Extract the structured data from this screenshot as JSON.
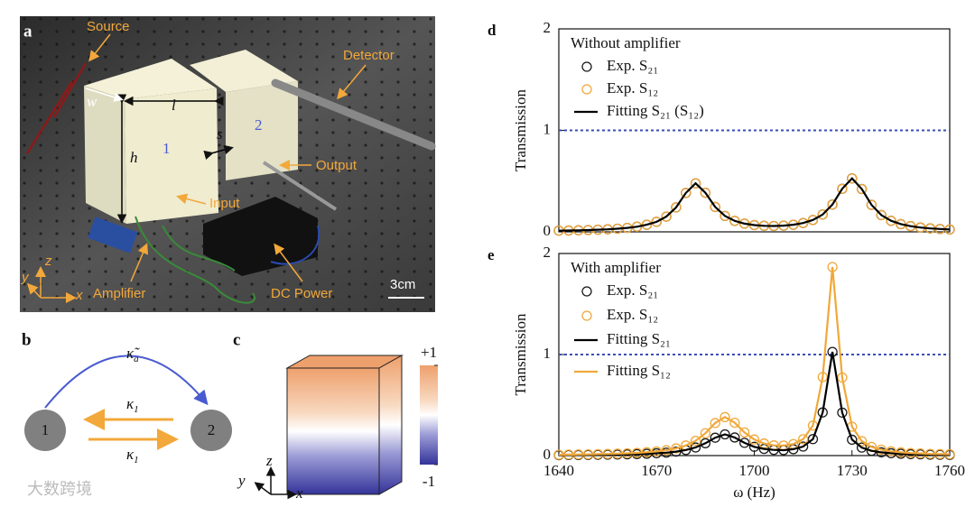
{
  "panel_a": {
    "letter": "a",
    "source": "Source",
    "detector": "Detector",
    "w": "w",
    "l": "l",
    "h": "h",
    "box1": "1",
    "box2": "2",
    "s": "s",
    "output": "Output",
    "input": "Input",
    "amplifier": "Amplifier",
    "dc_power": "DC Power",
    "scale": "3cm",
    "x": "x",
    "y": "y",
    "z": "z"
  },
  "panel_b": {
    "letter": "b",
    "node1": "1",
    "node2": "2",
    "kappa_a": {
      "base": "κ̃",
      "sub": "a"
    },
    "kappa_top": {
      "base": "κ",
      "sub": "1"
    },
    "kappa_bottom": {
      "base": "κ",
      "sub": "1"
    }
  },
  "panel_c": {
    "letter": "c",
    "clim": [
      -1,
      1
    ],
    "colorbar_ticks": [
      {
        "value": 1,
        "label": "+1"
      },
      -1
    ],
    "x": "x",
    "y": "y",
    "z": "z"
  },
  "watermark": "大数跨境",
  "chart_data": [
    {
      "type": "line",
      "panel": "d",
      "ylabel": "Transmission",
      "legend_title": "Without amplifier",
      "xlim": [
        1640,
        1760
      ],
      "ylim": [
        0,
        2
      ],
      "yticks": [
        0,
        1,
        2
      ],
      "reference_line": 1,
      "x": [
        1640,
        1643,
        1646,
        1649,
        1652,
        1655,
        1658,
        1661,
        1664,
        1667,
        1670,
        1673,
        1676,
        1679,
        1682,
        1685,
        1688,
        1691,
        1694,
        1697,
        1700,
        1703,
        1706,
        1709,
        1712,
        1715,
        1718,
        1721,
        1724,
        1727,
        1730,
        1733,
        1736,
        1739,
        1742,
        1745,
        1748,
        1751,
        1754,
        1757,
        1760
      ],
      "series": [
        {
          "name": "Exp. S₂₁",
          "color": "#1a1a1a",
          "marker": "circle",
          "values": [
            0.012,
            0.013,
            0.015,
            0.018,
            0.021,
            0.025,
            0.031,
            0.039,
            0.051,
            0.07,
            0.099,
            0.15,
            0.241,
            0.383,
            0.478,
            0.385,
            0.245,
            0.157,
            0.108,
            0.081,
            0.067,
            0.06,
            0.058,
            0.061,
            0.07,
            0.087,
            0.117,
            0.171,
            0.269,
            0.424,
            0.527,
            0.422,
            0.266,
            0.165,
            0.109,
            0.076,
            0.056,
            0.043,
            0.034,
            0.028,
            0.023
          ]
        },
        {
          "name": "Exp. S₁₂",
          "color": "#f0a83a",
          "marker": "circle",
          "values": [
            0.012,
            0.013,
            0.015,
            0.018,
            0.021,
            0.025,
            0.031,
            0.039,
            0.051,
            0.07,
            0.099,
            0.15,
            0.241,
            0.383,
            0.478,
            0.385,
            0.245,
            0.157,
            0.108,
            0.081,
            0.067,
            0.06,
            0.058,
            0.061,
            0.07,
            0.087,
            0.117,
            0.171,
            0.269,
            0.424,
            0.527,
            0.422,
            0.266,
            0.165,
            0.109,
            0.076,
            0.056,
            0.043,
            0.034,
            0.028,
            0.023
          ]
        },
        {
          "name": "Fitting S₂₁ (S₁₂)",
          "color": "#000000",
          "marker": "line",
          "values": [
            0.012,
            0.013,
            0.015,
            0.018,
            0.021,
            0.025,
            0.031,
            0.039,
            0.051,
            0.07,
            0.099,
            0.15,
            0.241,
            0.383,
            0.478,
            0.385,
            0.245,
            0.157,
            0.108,
            0.081,
            0.067,
            0.06,
            0.058,
            0.061,
            0.07,
            0.087,
            0.117,
            0.171,
            0.269,
            0.424,
            0.527,
            0.422,
            0.266,
            0.165,
            0.109,
            0.076,
            0.056,
            0.043,
            0.034,
            0.028,
            0.023
          ]
        }
      ]
    },
    {
      "type": "line",
      "panel": "e",
      "ylabel": "Transmission",
      "xlabel": "ω (Hz)",
      "legend_title": "With amplifier",
      "xlim": [
        1640,
        1760
      ],
      "xticks": [
        1640,
        1670,
        1700,
        1730,
        1760
      ],
      "ylim": [
        0,
        2
      ],
      "yticks": [
        0,
        1,
        2
      ],
      "reference_line": 1,
      "x": [
        1640,
        1643,
        1646,
        1649,
        1652,
        1655,
        1658,
        1661,
        1664,
        1667,
        1670,
        1673,
        1676,
        1679,
        1682,
        1685,
        1688,
        1691,
        1694,
        1697,
        1700,
        1703,
        1706,
        1709,
        1712,
        1715,
        1718,
        1721,
        1724,
        1727,
        1730,
        1733,
        1736,
        1739,
        1742,
        1745,
        1748,
        1751,
        1754,
        1757,
        1760
      ],
      "series": [
        {
          "name": "Exp. S₂₁",
          "color": "#1a1a1a",
          "marker": "circle",
          "values": [
            0.004,
            0.006,
            0.006,
            0.007,
            0.008,
            0.009,
            0.01,
            0.012,
            0.015,
            0.018,
            0.023,
            0.029,
            0.039,
            0.055,
            0.08,
            0.122,
            0.177,
            0.21,
            0.179,
            0.126,
            0.087,
            0.066,
            0.056,
            0.054,
            0.063,
            0.089,
            0.163,
            0.427,
            1.026,
            0.425,
            0.157,
            0.079,
            0.047,
            0.032,
            0.023,
            0.018,
            0.014,
            0.012,
            0.009,
            0.008,
            0.007
          ]
        },
        {
          "name": "Exp. S₁₂",
          "color": "#f0a83a",
          "marker": "circle",
          "values": [
            0.008,
            0.01,
            0.011,
            0.012,
            0.014,
            0.016,
            0.019,
            0.022,
            0.027,
            0.033,
            0.041,
            0.053,
            0.071,
            0.1,
            0.146,
            0.221,
            0.322,
            0.381,
            0.325,
            0.229,
            0.159,
            0.12,
            0.101,
            0.099,
            0.114,
            0.162,
            0.297,
            0.777,
            1.866,
            0.772,
            0.286,
            0.143,
            0.086,
            0.058,
            0.042,
            0.032,
            0.025,
            0.021,
            0.017,
            0.015,
            0.013
          ]
        },
        {
          "name": "Fitting S₂₁",
          "color": "#000000",
          "marker": "line",
          "values": [
            0.004,
            0.006,
            0.006,
            0.007,
            0.008,
            0.009,
            0.01,
            0.012,
            0.015,
            0.018,
            0.023,
            0.029,
            0.039,
            0.055,
            0.08,
            0.122,
            0.177,
            0.21,
            0.179,
            0.126,
            0.087,
            0.066,
            0.056,
            0.054,
            0.063,
            0.089,
            0.163,
            0.427,
            1.026,
            0.425,
            0.157,
            0.079,
            0.047,
            0.032,
            0.023,
            0.018,
            0.014,
            0.012,
            0.009,
            0.008,
            0.007
          ]
        },
        {
          "name": "Fitting S₁₂",
          "color": "#f0a83a",
          "marker": "line",
          "values": [
            0.008,
            0.01,
            0.011,
            0.012,
            0.014,
            0.016,
            0.019,
            0.022,
            0.027,
            0.033,
            0.041,
            0.053,
            0.071,
            0.1,
            0.146,
            0.221,
            0.322,
            0.381,
            0.325,
            0.229,
            0.159,
            0.12,
            0.101,
            0.099,
            0.114,
            0.162,
            0.297,
            0.777,
            1.866,
            0.772,
            0.286,
            0.143,
            0.086,
            0.058,
            0.042,
            0.032,
            0.025,
            0.021,
            0.017,
            0.015,
            0.013
          ]
        }
      ]
    }
  ]
}
